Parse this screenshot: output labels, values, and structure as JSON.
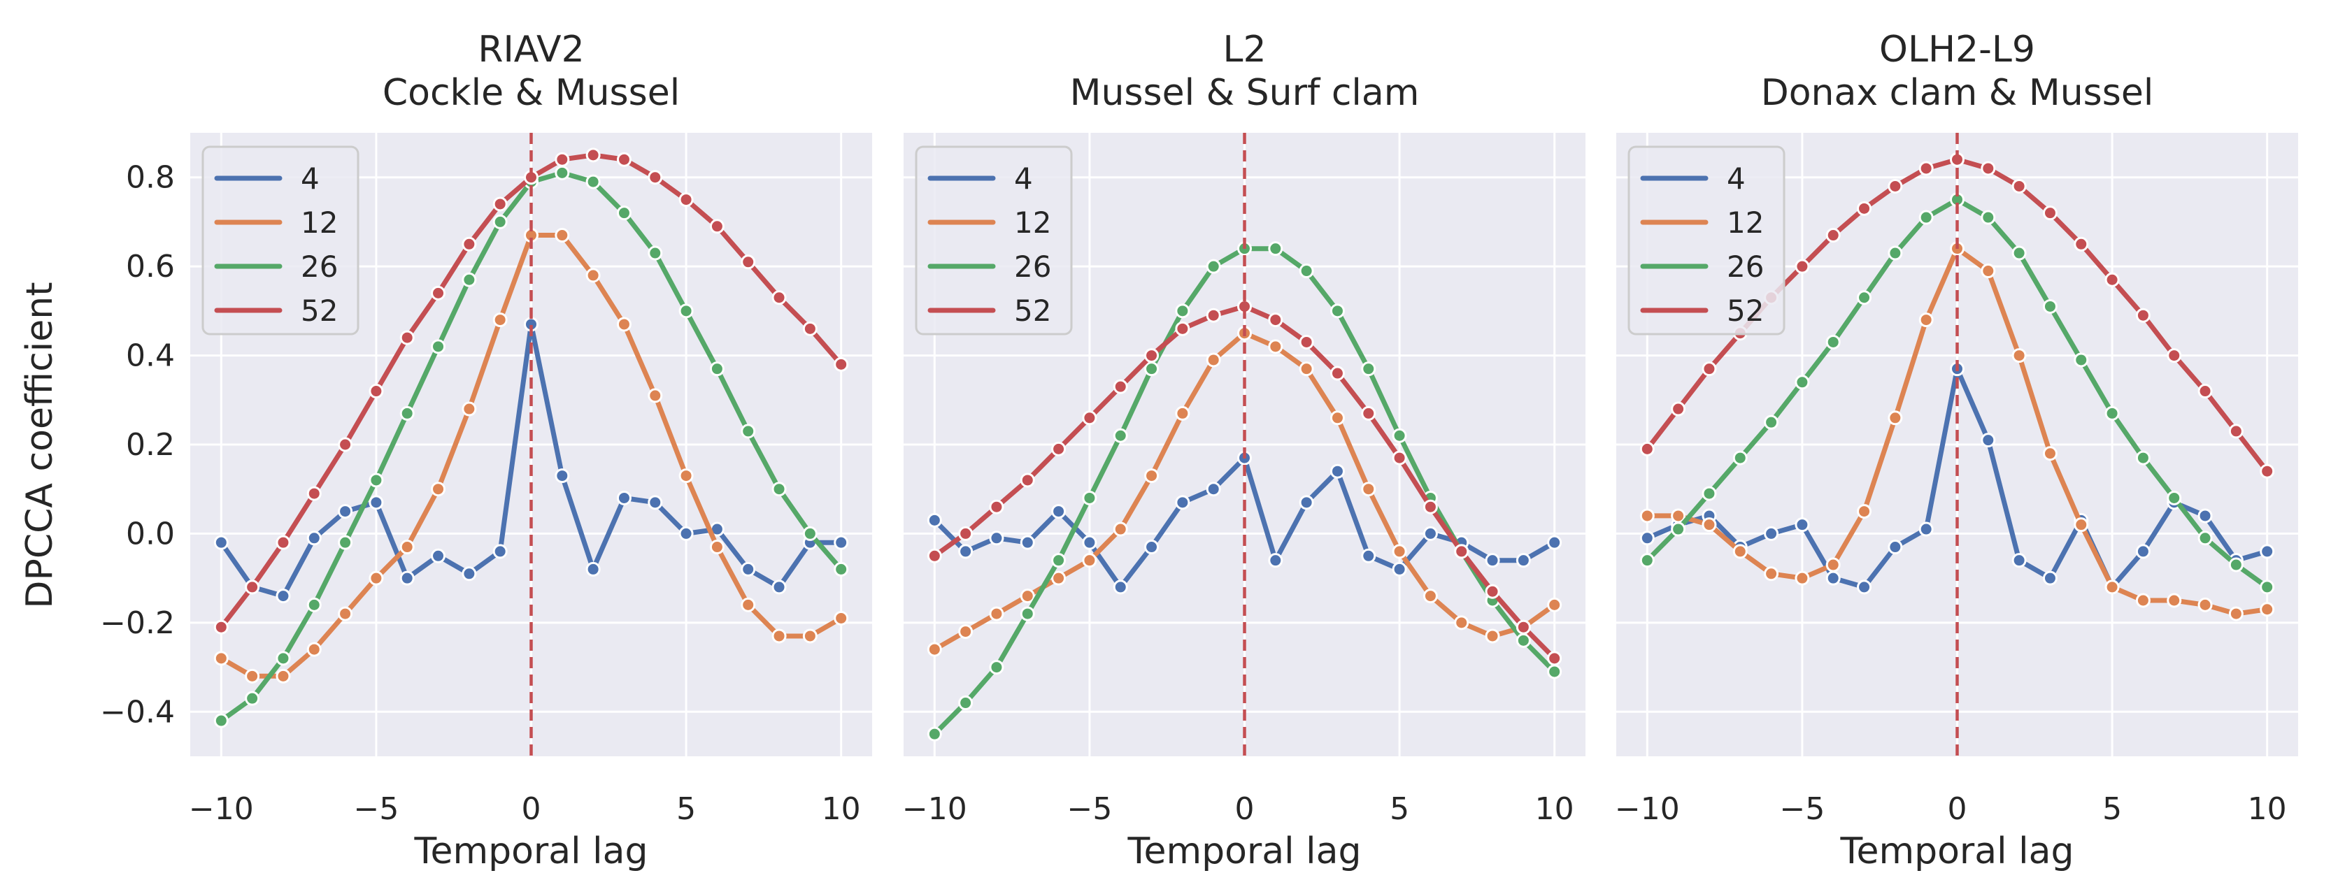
{
  "figure": {
    "ylabel": "DPCCA coefficient",
    "xlabel": "Temporal lag"
  },
  "chart_data": [
    {
      "type": "line",
      "title": "RIAV2",
      "subtitle": "Cockle & Mussel",
      "xlabel": "Temporal lag",
      "ylabel": "DPCCA coefficient",
      "xlim": [
        -11,
        11
      ],
      "ylim": [
        -0.5,
        0.9
      ],
      "xticks": [
        "−10",
        "−5",
        "0",
        "5",
        "10"
      ],
      "yticks": [
        "−0.4",
        "−0.2",
        "0.0",
        "0.2",
        "0.4",
        "0.6",
        "0.8"
      ],
      "grid": true,
      "legend_position": "top-left",
      "vline_x": 0,
      "x": [
        -10,
        -9,
        -8,
        -7,
        -6,
        -5,
        -4,
        -3,
        -2,
        -1,
        0,
        1,
        2,
        3,
        4,
        5,
        6,
        7,
        8,
        9,
        10
      ],
      "series": [
        {
          "name": "4",
          "color": "#4c72b0",
          "values": [
            -0.02,
            -0.12,
            -0.14,
            -0.01,
            0.05,
            0.07,
            -0.1,
            -0.05,
            -0.09,
            -0.04,
            0.47,
            0.13,
            -0.08,
            0.08,
            0.07,
            0.0,
            0.01,
            -0.08,
            -0.12,
            -0.02,
            -0.02
          ]
        },
        {
          "name": "12",
          "color": "#dd8452",
          "values": [
            -0.28,
            -0.32,
            -0.32,
            -0.26,
            -0.18,
            -0.1,
            -0.03,
            0.1,
            0.28,
            0.48,
            0.67,
            0.67,
            0.58,
            0.47,
            0.31,
            0.13,
            -0.03,
            -0.16,
            -0.23,
            -0.23,
            -0.19
          ]
        },
        {
          "name": "26",
          "color": "#55a868",
          "values": [
            -0.42,
            -0.37,
            -0.28,
            -0.16,
            -0.02,
            0.12,
            0.27,
            0.42,
            0.57,
            0.7,
            0.79,
            0.81,
            0.79,
            0.72,
            0.63,
            0.5,
            0.37,
            0.23,
            0.1,
            0.0,
            -0.08
          ]
        },
        {
          "name": "52",
          "color": "#c44e52",
          "values": [
            -0.21,
            -0.12,
            -0.02,
            0.09,
            0.2,
            0.32,
            0.44,
            0.54,
            0.65,
            0.74,
            0.8,
            0.84,
            0.85,
            0.84,
            0.8,
            0.75,
            0.69,
            0.61,
            0.53,
            0.46,
            0.38
          ]
        }
      ]
    },
    {
      "type": "line",
      "title": "L2",
      "subtitle": "Mussel & Surf clam",
      "xlabel": "Temporal lag",
      "ylabel": "",
      "xlim": [
        -11,
        11
      ],
      "ylim": [
        -0.5,
        0.9
      ],
      "xticks": [
        "−10",
        "−5",
        "0",
        "5",
        "10"
      ],
      "yticks": [],
      "grid": true,
      "legend_position": "top-left",
      "vline_x": 0,
      "x": [
        -10,
        -9,
        -8,
        -7,
        -6,
        -5,
        -4,
        -3,
        -2,
        -1,
        0,
        1,
        2,
        3,
        4,
        5,
        6,
        7,
        8,
        9,
        10
      ],
      "series": [
        {
          "name": "4",
          "color": "#4c72b0",
          "values": [
            0.03,
            -0.04,
            -0.01,
            -0.02,
            0.05,
            -0.02,
            -0.12,
            -0.03,
            0.07,
            0.1,
            0.17,
            -0.06,
            0.07,
            0.14,
            -0.05,
            -0.08,
            0.0,
            -0.02,
            -0.06,
            -0.06,
            -0.02
          ]
        },
        {
          "name": "12",
          "color": "#dd8452",
          "values": [
            -0.26,
            -0.22,
            -0.18,
            -0.14,
            -0.1,
            -0.06,
            0.01,
            0.13,
            0.27,
            0.39,
            0.45,
            0.42,
            0.37,
            0.26,
            0.1,
            -0.04,
            -0.14,
            -0.2,
            -0.23,
            -0.21,
            -0.16
          ]
        },
        {
          "name": "26",
          "color": "#55a868",
          "values": [
            -0.45,
            -0.38,
            -0.3,
            -0.18,
            -0.06,
            0.08,
            0.22,
            0.37,
            0.5,
            0.6,
            0.64,
            0.64,
            0.59,
            0.5,
            0.37,
            0.22,
            0.08,
            -0.04,
            -0.15,
            -0.24,
            -0.31
          ]
        },
        {
          "name": "52",
          "color": "#c44e52",
          "values": [
            -0.05,
            0.0,
            0.06,
            0.12,
            0.19,
            0.26,
            0.33,
            0.4,
            0.46,
            0.49,
            0.51,
            0.48,
            0.43,
            0.36,
            0.27,
            0.17,
            0.06,
            -0.04,
            -0.13,
            -0.21,
            -0.28
          ]
        }
      ]
    },
    {
      "type": "line",
      "title": "OLH2-L9",
      "subtitle": "Donax clam & Mussel",
      "xlabel": "Temporal lag",
      "ylabel": "",
      "xlim": [
        -11,
        11
      ],
      "ylim": [
        -0.5,
        0.9
      ],
      "xticks": [
        "−10",
        "−5",
        "0",
        "5",
        "10"
      ],
      "yticks": [],
      "grid": true,
      "legend_position": "top-left",
      "vline_x": 0,
      "x": [
        -10,
        -9,
        -8,
        -7,
        -6,
        -5,
        -4,
        -3,
        -2,
        -1,
        0,
        1,
        2,
        3,
        4,
        5,
        6,
        7,
        8,
        9,
        10
      ],
      "series": [
        {
          "name": "4",
          "color": "#4c72b0",
          "values": [
            -0.01,
            0.02,
            0.04,
            -0.03,
            0.0,
            0.02,
            -0.1,
            -0.12,
            -0.03,
            0.01,
            0.37,
            0.21,
            -0.06,
            -0.1,
            0.03,
            -0.12,
            -0.04,
            0.07,
            0.04,
            -0.06,
            -0.04
          ]
        },
        {
          "name": "12",
          "color": "#dd8452",
          "values": [
            0.04,
            0.04,
            0.02,
            -0.04,
            -0.09,
            -0.1,
            -0.07,
            0.05,
            0.26,
            0.48,
            0.64,
            0.59,
            0.4,
            0.18,
            0.02,
            -0.12,
            -0.15,
            -0.15,
            -0.16,
            -0.18,
            -0.17
          ]
        },
        {
          "name": "26",
          "color": "#55a868",
          "values": [
            -0.06,
            0.01,
            0.09,
            0.17,
            0.25,
            0.34,
            0.43,
            0.53,
            0.63,
            0.71,
            0.75,
            0.71,
            0.63,
            0.51,
            0.39,
            0.27,
            0.17,
            0.08,
            -0.01,
            -0.07,
            -0.12
          ]
        },
        {
          "name": "52",
          "color": "#c44e52",
          "values": [
            0.19,
            0.28,
            0.37,
            0.45,
            0.53,
            0.6,
            0.67,
            0.73,
            0.78,
            0.82,
            0.84,
            0.82,
            0.78,
            0.72,
            0.65,
            0.57,
            0.49,
            0.4,
            0.32,
            0.23,
            0.14
          ]
        }
      ]
    }
  ]
}
